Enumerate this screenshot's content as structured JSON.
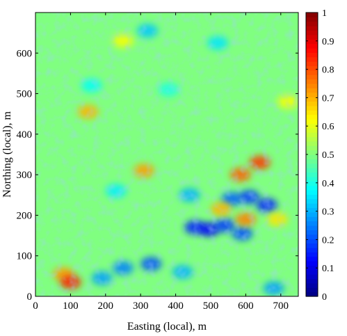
{
  "chart_data": {
    "type": "heatmap",
    "xlabel": "Easting (local), m",
    "ylabel": "Northing (local), m",
    "xlim": [
      0,
      750
    ],
    "ylim": [
      0,
      700
    ],
    "xticks": [
      0,
      100,
      200,
      300,
      400,
      500,
      600,
      700
    ],
    "yticks": [
      0,
      100,
      200,
      300,
      400,
      500,
      600
    ],
    "colorbar": {
      "range": [
        0,
        1
      ],
      "ticks": [
        "0",
        "0.1",
        "0.2",
        "0.3",
        "0.4",
        "0.5",
        "0.6",
        "0.7",
        "0.8",
        "0.9",
        "1"
      ],
      "colormap": "jet"
    },
    "background_value": 0.5,
    "features": [
      {
        "x": 560,
        "y": 240,
        "value": 0.22
      },
      {
        "x": 610,
        "y": 245,
        "value": 0.18
      },
      {
        "x": 660,
        "y": 225,
        "value": 0.15
      },
      {
        "x": 455,
        "y": 170,
        "value": 0.15
      },
      {
        "x": 495,
        "y": 165,
        "value": 0.12
      },
      {
        "x": 540,
        "y": 175,
        "value": 0.18
      },
      {
        "x": 590,
        "y": 155,
        "value": 0.2
      },
      {
        "x": 330,
        "y": 80,
        "value": 0.2
      },
      {
        "x": 250,
        "y": 70,
        "value": 0.25
      },
      {
        "x": 190,
        "y": 45,
        "value": 0.28
      },
      {
        "x": 420,
        "y": 60,
        "value": 0.3
      },
      {
        "x": 585,
        "y": 300,
        "value": 0.78
      },
      {
        "x": 640,
        "y": 330,
        "value": 0.82
      },
      {
        "x": 600,
        "y": 190,
        "value": 0.75
      },
      {
        "x": 530,
        "y": 215,
        "value": 0.7
      },
      {
        "x": 80,
        "y": 55,
        "value": 0.72
      },
      {
        "x": 100,
        "y": 35,
        "value": 0.85
      },
      {
        "x": 150,
        "y": 455,
        "value": 0.7
      },
      {
        "x": 310,
        "y": 310,
        "value": 0.72
      },
      {
        "x": 690,
        "y": 190,
        "value": 0.65
      },
      {
        "x": 320,
        "y": 655,
        "value": 0.32
      },
      {
        "x": 520,
        "y": 625,
        "value": 0.35
      },
      {
        "x": 380,
        "y": 510,
        "value": 0.4
      },
      {
        "x": 160,
        "y": 520,
        "value": 0.38
      },
      {
        "x": 250,
        "y": 630,
        "value": 0.62
      },
      {
        "x": 680,
        "y": 20,
        "value": 0.28
      },
      {
        "x": 440,
        "y": 250,
        "value": 0.3
      },
      {
        "x": 230,
        "y": 260,
        "value": 0.36
      },
      {
        "x": 720,
        "y": 480,
        "value": 0.62
      }
    ]
  }
}
